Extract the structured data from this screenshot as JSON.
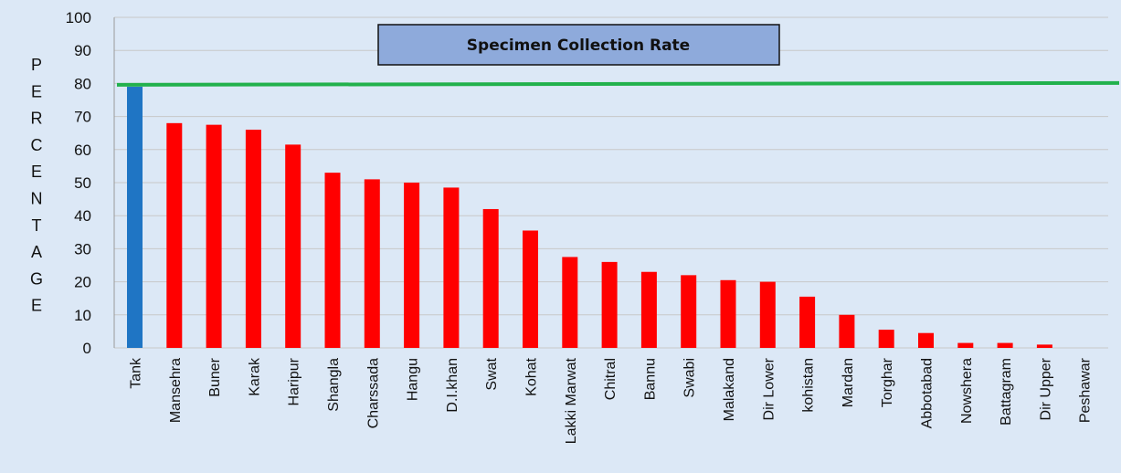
{
  "chart_data": {
    "type": "bar",
    "title": "Specimen Collection Rate",
    "ylabel": "PERCENTAGE",
    "xlabel": "",
    "ylim": [
      0,
      100
    ],
    "yticks": [
      0,
      10,
      20,
      30,
      40,
      50,
      60,
      70,
      80,
      90,
      100
    ],
    "categories": [
      "Tank",
      "Mansehra",
      "Buner",
      "Karak",
      "Haripur",
      "Shangla",
      "Charssada",
      "Hangu",
      "D.I.khan",
      "Swat",
      "Kohat",
      "Lakki Marwat",
      "Chitral",
      "Bannu",
      "Swabi",
      "Malakand",
      "Dir Lower",
      "kohistan",
      "Mardan",
      "Torghar",
      "Abbotabad",
      "Nowshera",
      "Battagram",
      "Dir Upper",
      "Peshawar"
    ],
    "values": [
      79,
      68,
      67.5,
      66,
      61.5,
      53,
      51,
      50,
      48.5,
      42,
      35.5,
      27.5,
      26,
      23,
      22,
      20.5,
      20,
      15.5,
      10,
      5.5,
      4.5,
      1.5,
      1.5,
      1,
      0
    ],
    "target_line": 80,
    "colors": {
      "highlight_bar": "#1f75c4",
      "bar": "#ff0000",
      "target_line": "#22b14c",
      "title_box": "#8eaadb",
      "grid": "#c8c8c8"
    }
  }
}
